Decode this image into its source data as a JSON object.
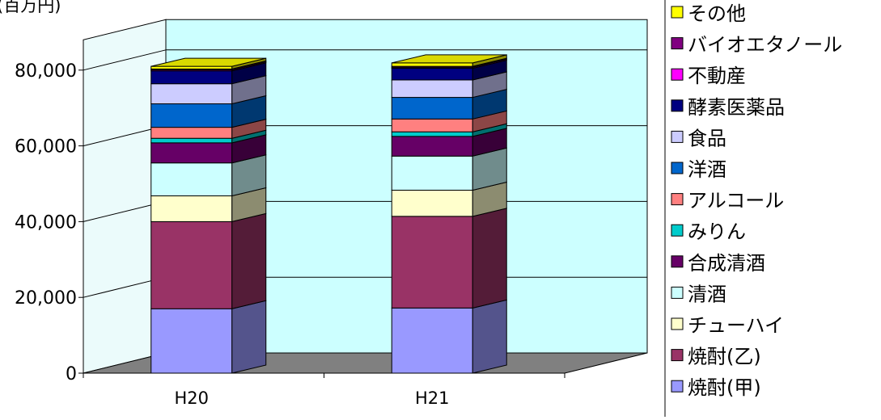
{
  "chart_data": {
    "type": "bar",
    "stacked": true,
    "three_d": true,
    "unit_label": "(百万円)",
    "categories": [
      "H20",
      "H21"
    ],
    "ylim": [
      0,
      80000
    ],
    "yticks": [
      0,
      20000,
      40000,
      60000,
      80000
    ],
    "ytick_labels": [
      "0",
      "20,000",
      "40,000",
      "60,000",
      "80,000"
    ],
    "grid": true,
    "legend_position": "right",
    "series": [
      {
        "name": "焼酎(甲)",
        "color": "#9999ff",
        "values": [
          17000,
          17200
        ]
      },
      {
        "name": "焼酎(乙)",
        "color": "#993366",
        "values": [
          23000,
          24200
        ]
      },
      {
        "name": "チューハイ",
        "color": "#ffffcc",
        "values": [
          6800,
          6900
        ]
      },
      {
        "name": "清酒",
        "color": "#ccffff",
        "values": [
          8700,
          9000
        ]
      },
      {
        "name": "合成清酒",
        "color": "#660066",
        "values": [
          5300,
          5200
        ]
      },
      {
        "name": "みりん",
        "color": "#00cccc",
        "values": [
          1200,
          1200
        ]
      },
      {
        "name": "アルコール",
        "color": "#ff8080",
        "values": [
          2900,
          3400
        ]
      },
      {
        "name": "洋酒",
        "color": "#0066cc",
        "values": [
          6200,
          5700
        ]
      },
      {
        "name": "食品",
        "color": "#ccccff",
        "values": [
          5300,
          4600
        ]
      },
      {
        "name": "酵素医薬品",
        "color": "#000080",
        "values": [
          3400,
          3100
        ]
      },
      {
        "name": "不動産",
        "color": "#ff00ff",
        "values": [
          250,
          250
        ]
      },
      {
        "name": "バイオエタノール",
        "color": "#800080",
        "values": [
          250,
          250
        ]
      },
      {
        "name": "その他",
        "color": "#ffff00",
        "values": [
          700,
          900
        ]
      }
    ]
  }
}
